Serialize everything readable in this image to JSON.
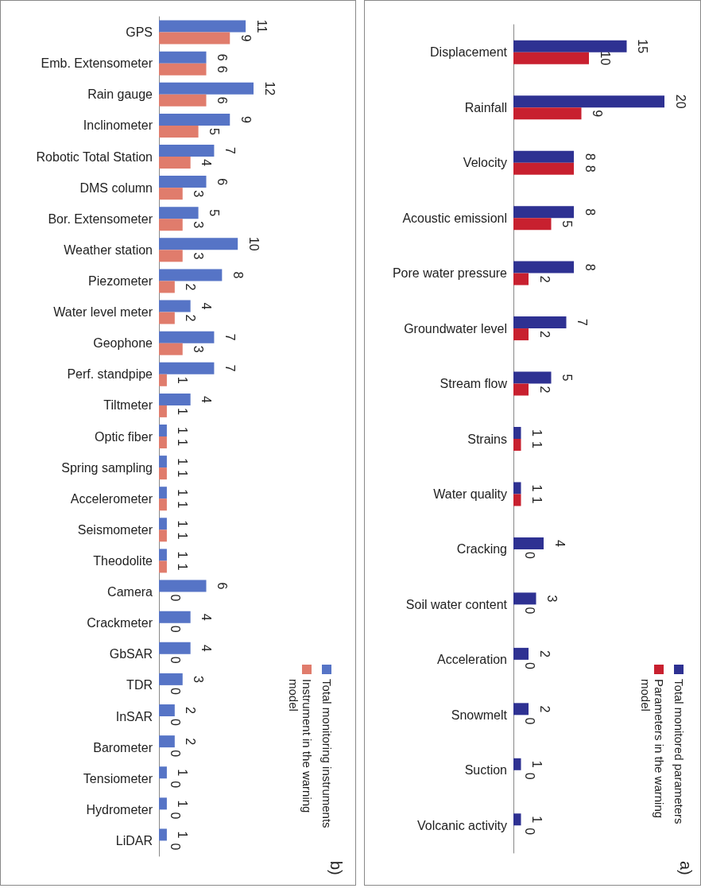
{
  "chart_data": [
    {
      "type": "bar",
      "orientation": "horizontal",
      "categories": [
        "GPS",
        "Emb. Extensometer",
        "Rain gauge",
        "Inclinometer",
        "Robotic Total Station",
        "DMS column",
        "Bor. Extensometer",
        "Weather station",
        "Piezometer",
        "Water level meter",
        "Geophone",
        "Perf. standpipe",
        "Tiltmeter",
        "Optic fiber",
        "Spring sampling",
        "Accelerometer",
        "Seismometer",
        "Theodolite",
        "Camera",
        "Crackmeter",
        "GbSAR",
        "TDR",
        "InSAR",
        "Barometer",
        "Tensiometer",
        "Hydrometer",
        "LiDAR"
      ],
      "series": [
        {
          "name": "Total monitoring instruments",
          "color": "#5674c6",
          "values": [
            11,
            6,
            12,
            9,
            7,
            6,
            5,
            10,
            8,
            4,
            7,
            7,
            4,
            1,
            1,
            1,
            1,
            1,
            6,
            4,
            4,
            3,
            2,
            2,
            1,
            1,
            1
          ]
        },
        {
          "name": "Instrument in the warning model",
          "color": "#e07c6c",
          "values": [
            9,
            6,
            6,
            5,
            4,
            3,
            3,
            3,
            2,
            2,
            3,
            1,
            1,
            1,
            1,
            1,
            1,
            1,
            0,
            0,
            0,
            0,
            0,
            0,
            0,
            0,
            0
          ]
        }
      ],
      "tick_labels": "y",
      "data_labels": true,
      "legend": "bottom right",
      "annotations": [
        "b)"
      ]
    },
    {
      "type": "bar",
      "orientation": "horizontal",
      "categories": [
        "Displacement",
        "Rainfall",
        "Velocity",
        "Acoustic emissionl",
        "Pore water pressure",
        "Groundwater level",
        "Stream flow",
        "Strains",
        "Water quality",
        "Cracking",
        "Soil water content",
        "Acceleration",
        "Snowmelt",
        "Suction",
        "Volcanic activity"
      ],
      "series": [
        {
          "name": "Total monitored parameters",
          "color": "#2e3192",
          "values": [
            15,
            20,
            8,
            8,
            8,
            7,
            5,
            1,
            1,
            4,
            3,
            2,
            2,
            1,
            1
          ]
        },
        {
          "name": "Parameters in the warning model",
          "color": "#c8202f",
          "values": [
            10,
            9,
            8,
            5,
            2,
            2,
            2,
            1,
            1,
            0,
            0,
            0,
            0,
            0,
            0
          ]
        }
      ],
      "tick_labels": "y",
      "data_labels": true,
      "legend": "bottom right",
      "annotations": [
        "a)"
      ]
    }
  ]
}
